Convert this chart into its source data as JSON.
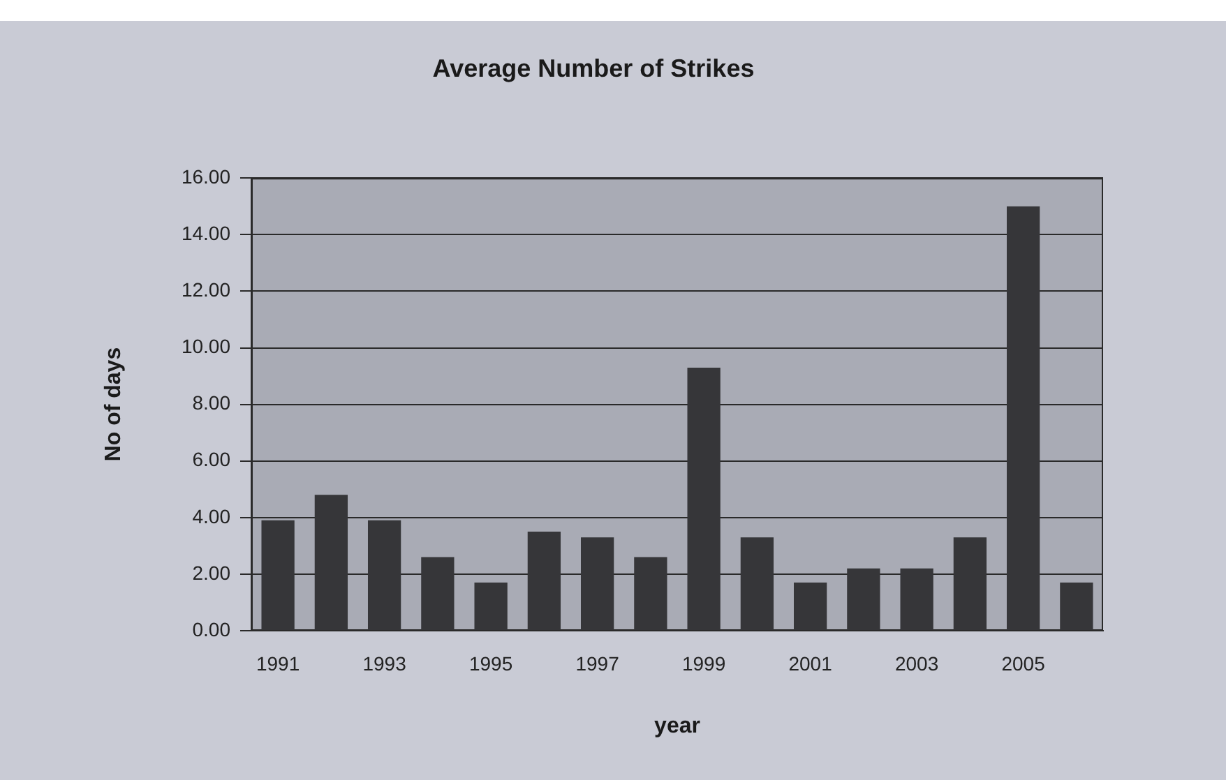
{
  "chart_data": {
    "type": "bar",
    "title": "Average Number of Strikes",
    "xlabel": "year",
    "ylabel": "No of days",
    "categories": [
      "1991",
      null,
      "1993",
      null,
      "1995",
      null,
      "1997",
      null,
      "1999",
      null,
      "2001",
      null,
      "2003",
      null,
      "2005",
      null
    ],
    "values": [
      3.9,
      4.8,
      3.9,
      2.6,
      1.7,
      3.5,
      3.3,
      2.6,
      9.3,
      3.3,
      1.7,
      2.2,
      2.2,
      3.3,
      15.0,
      1.7
    ],
    "color": "#363639",
    "ylim": [
      0,
      16
    ],
    "yticks": [
      {
        "value": 0,
        "label": "0.00"
      },
      {
        "value": 2,
        "label": "2.00"
      },
      {
        "value": 4,
        "label": "4.00"
      },
      {
        "value": 6,
        "label": "6.00"
      },
      {
        "value": 8,
        "label": "8.00"
      },
      {
        "value": 10,
        "label": "10.00"
      },
      {
        "value": 12,
        "label": "12.00"
      },
      {
        "value": 14,
        "label": "14.00"
      },
      {
        "value": 16,
        "label": "16.00"
      }
    ],
    "grid": "y"
  }
}
